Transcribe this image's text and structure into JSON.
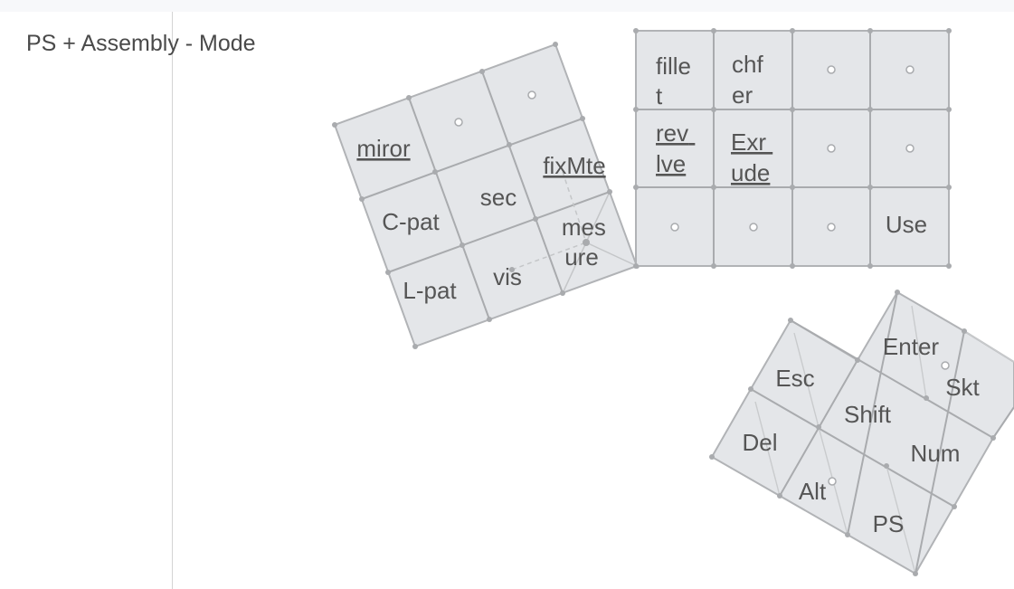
{
  "page": {
    "title": "PS + Assembly - Mode"
  },
  "keyboard": {
    "left_cluster": {
      "rows": [
        [
          "miror",
          "",
          ""
        ],
        [
          "C-pat",
          "sec",
          "fixMte"
        ],
        [
          "L-pat",
          "vis",
          "mes ure"
        ]
      ]
    },
    "center_cluster": {
      "rows": [
        [
          "fille t",
          "chf er",
          "",
          ""
        ],
        [
          "rev lve",
          "Exr ude",
          "",
          ""
        ],
        [
          "",
          "",
          "",
          "Use"
        ]
      ]
    },
    "thumb_cluster": {
      "keys": [
        "Esc",
        "Enter",
        "Skt",
        "Shift",
        "Del",
        "Num",
        "Alt",
        "PS"
      ]
    }
  },
  "colors": {
    "key_fill": "#e4e6e9",
    "key_stroke": "#b1b3b6",
    "grid_line": "#a9abae",
    "text": "#555555",
    "spellcheck": "#e05050"
  }
}
